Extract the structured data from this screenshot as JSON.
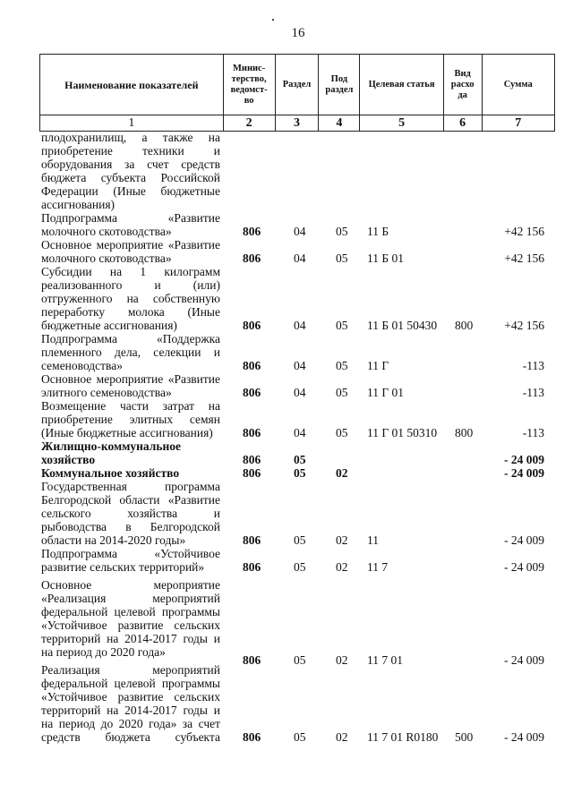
{
  "page_number": "16",
  "header": {
    "columns": [
      "Наименование показателей",
      "Минис-терство, ведомст-во",
      "Раздел",
      "Под раздел",
      "Целевая статья",
      "Вид расхо да",
      "Сумма"
    ],
    "numbers": [
      "1",
      "2",
      "3",
      "4",
      "5",
      "6",
      "7"
    ]
  },
  "rows": [
    {
      "lines": [
        "плодохранилищ, а также на",
        "приобретение техники и",
        "оборудования за счет средств",
        "бюджета субъекта Российской",
        "Федерации (Иные бюджетные",
        "ассигнования)"
      ],
      "ministry": "",
      "section": "",
      "subsection": "",
      "target": "",
      "kind": "",
      "sum": ""
    },
    {
      "lines": [
        "Подпрограмма «Развитие",
        "молочного скотоводства»"
      ],
      "ministry": "806",
      "section": "04",
      "subsection": "05",
      "target": "11 Б",
      "kind": "",
      "sum": "+42 156"
    },
    {
      "lines": [
        "Основное мероприятие «Развитие",
        "молочного скотоводства»"
      ],
      "ministry": "806",
      "section": "04",
      "subsection": "05",
      "target": "11 Б 01",
      "kind": "",
      "sum": "+42 156"
    },
    {
      "lines": [
        "Субсидии на 1 килограмм",
        "реализованного и (или)",
        "отгруженного на собственную",
        "переработку молока (Иные",
        "бюджетные ассигнования)"
      ],
      "ministry": "806",
      "section": "04",
      "subsection": "05",
      "target": "11 Б 01 50430",
      "kind": "800",
      "sum": "+42 156"
    },
    {
      "lines": [
        "Подпрограмма «Поддержка",
        "племенного дела, селекции и",
        "семеноводства»"
      ],
      "ministry": "806",
      "section": "04",
      "subsection": "05",
      "target": "11 Г",
      "kind": "",
      "sum": "-113"
    },
    {
      "lines": [
        "Основное мероприятие «Развитие",
        "элитного семеноводства»"
      ],
      "ministry": "806",
      "section": "04",
      "subsection": "05",
      "target": "11 Г 01",
      "kind": "",
      "sum": "-113"
    },
    {
      "lines": [
        "Возмещение части затрат на",
        "приобретение элитных семян",
        "(Иные бюджетные ассигнования)"
      ],
      "ministry": "806",
      "section": "04",
      "subsection": "05",
      "target": "11 Г 01 50310",
      "kind": "800",
      "sum": "-113"
    },
    {
      "lines": [
        "Жилищно-коммунальное",
        "хозяйство"
      ],
      "bold": true,
      "ministry": "806",
      "section": "05",
      "subsection": "",
      "target": "",
      "kind": "",
      "sum": "- 24 009"
    },
    {
      "lines": [
        "Коммунальное хозяйство"
      ],
      "bold": true,
      "ministry": "806",
      "section": "05",
      "subsection": "02",
      "target": "",
      "kind": "",
      "sum": "- 24 009"
    },
    {
      "lines": [
        "Государственная программа",
        "Белгородской области «Развитие",
        "сельского хозяйства и",
        "рыбоводства в Белгородской",
        "области на 2014-2020 годы»"
      ],
      "ministry": "806",
      "section": "05",
      "subsection": "02",
      "target": "11",
      "kind": "",
      "sum": "- 24 009"
    },
    {
      "lines": [
        "Подпрограмма «Устойчивое",
        "развитие сельских территорий»"
      ],
      "ministry": "806",
      "section": "05",
      "subsection": "02",
      "target": "11 7",
      "kind": "",
      "sum": "- 24 009"
    },
    {
      "lines": [
        "Основное мероприятие",
        "«Реализация мероприятий",
        "федеральной целевой программы",
        "«Устойчивое развитие сельских",
        "территорий на 2014-2017 годы и",
        "на период до 2020 года»"
      ],
      "ministry": "806",
      "section": "05",
      "subsection": "02",
      "target": "11 7 01",
      "kind": "",
      "sum": "- 24 009"
    },
    {
      "lines": [
        "Реализация мероприятий",
        "федеральной целевой программы",
        "«Устойчивое развитие сельских",
        "территорий на 2014-2017 годы и",
        "на период до 2020 года» за счет",
        "средств бюджета субъекта"
      ],
      "continues": true,
      "ministry": "806",
      "section": "05",
      "subsection": "02",
      "target": "11 7 01 R0180",
      "kind": "500",
      "sum": "- 24 009"
    }
  ]
}
